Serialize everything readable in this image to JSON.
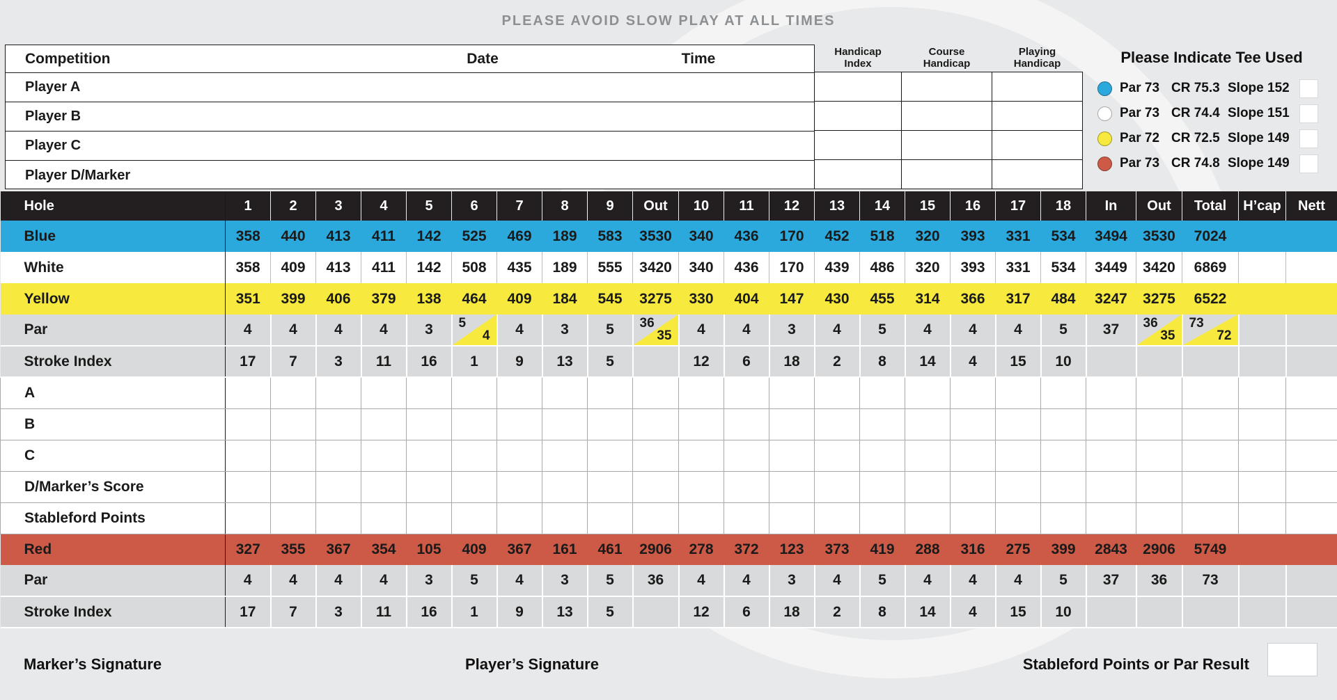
{
  "notice": "PLEASE AVOID SLOW PLAY AT ALL TIMES",
  "info": {
    "competition": "Competition",
    "date": "Date",
    "time": "Time",
    "players": [
      "Player A",
      "Player B",
      "Player C",
      "Player D/Marker"
    ],
    "handicap_columns": [
      [
        "Handicap",
        "Index"
      ],
      [
        "Course",
        "Handicap"
      ],
      [
        "Playing",
        "Handicap"
      ]
    ]
  },
  "tees": {
    "title": "Please Indicate Tee Used",
    "options": [
      {
        "name": "blue",
        "color": "#2BA8DC",
        "par": "Par 73",
        "cr": "CR 75.3",
        "slope": "Slope 152"
      },
      {
        "name": "white",
        "color": "#FFFFFF",
        "par": "Par 73",
        "cr": "CR 74.4",
        "slope": "Slope 151"
      },
      {
        "name": "yellow",
        "color": "#F7E93D",
        "par": "Par 72",
        "cr": "CR 72.5",
        "slope": "Slope 149"
      },
      {
        "name": "red",
        "color": "#CC5A47",
        "par": "Par 73",
        "cr": "CR 74.8",
        "slope": "Slope 149"
      }
    ]
  },
  "scorecard": {
    "columns": [
      "Hole",
      "1",
      "2",
      "3",
      "4",
      "5",
      "6",
      "7",
      "8",
      "9",
      "Out",
      "10",
      "11",
      "12",
      "13",
      "14",
      "15",
      "16",
      "17",
      "18",
      "In",
      "Out",
      "Total",
      "H’cap",
      "Nett"
    ],
    "rows": [
      {
        "label": "Blue",
        "style": "blue",
        "cells": [
          "358",
          "440",
          "413",
          "411",
          "142",
          "525",
          "469",
          "189",
          "583",
          "3530",
          "340",
          "436",
          "170",
          "452",
          "518",
          "320",
          "393",
          "331",
          "534",
          "3494",
          "3530",
          "7024",
          "",
          ""
        ]
      },
      {
        "label": "White",
        "style": "white",
        "cells": [
          "358",
          "409",
          "413",
          "411",
          "142",
          "508",
          "435",
          "189",
          "555",
          "3420",
          "340",
          "436",
          "170",
          "439",
          "486",
          "320",
          "393",
          "331",
          "534",
          "3449",
          "3420",
          "6869",
          "",
          ""
        ]
      },
      {
        "label": "Yellow",
        "style": "yellow",
        "cells": [
          "351",
          "399",
          "406",
          "379",
          "138",
          "464",
          "409",
          "184",
          "545",
          "3275",
          "330",
          "404",
          "147",
          "430",
          "455",
          "314",
          "366",
          "317",
          "484",
          "3247",
          "3275",
          "6522",
          "",
          ""
        ]
      },
      {
        "label": "Par",
        "style": "par",
        "cells": [
          "4",
          "4",
          "4",
          "4",
          "3",
          {
            "split": [
              "5",
              "4"
            ]
          },
          "4",
          "3",
          "5",
          {
            "split": [
              "36",
              "35"
            ]
          },
          "4",
          "4",
          "3",
          "4",
          "5",
          "4",
          "4",
          "4",
          "5",
          "37",
          {
            "split": [
              "36",
              "35"
            ]
          },
          {
            "split": [
              "73",
              "72"
            ]
          },
          "",
          ""
        ]
      },
      {
        "label": "Stroke Index",
        "style": "si",
        "cells": [
          "17",
          "7",
          "3",
          "11",
          "16",
          "1",
          "9",
          "13",
          "5",
          "",
          "12",
          "6",
          "18",
          "2",
          "8",
          "14",
          "4",
          "15",
          "10",
          "",
          "",
          "",
          "",
          ""
        ]
      },
      {
        "label": "A",
        "style": "entry",
        "cells": []
      },
      {
        "label": "B",
        "style": "entry",
        "cells": []
      },
      {
        "label": "C",
        "style": "entry",
        "cells": []
      },
      {
        "label": "D/Marker’s Score",
        "style": "entry",
        "cells": []
      },
      {
        "label": "Stableford Points",
        "style": "entry",
        "cells": []
      },
      {
        "label": "Red",
        "style": "red",
        "cells": [
          "327",
          "355",
          "367",
          "354",
          "105",
          "409",
          "367",
          "161",
          "461",
          "2906",
          "278",
          "372",
          "123",
          "373",
          "419",
          "288",
          "316",
          "275",
          "399",
          "2843",
          "2906",
          "5749",
          "",
          ""
        ]
      },
      {
        "label": "Par",
        "style": "par",
        "cells": [
          "4",
          "4",
          "4",
          "4",
          "3",
          "5",
          "4",
          "3",
          "5",
          "36",
          "4",
          "4",
          "3",
          "4",
          "5",
          "4",
          "4",
          "4",
          "5",
          "37",
          "36",
          "73",
          "",
          ""
        ]
      },
      {
        "label": "Stroke Index",
        "style": "si",
        "cells": [
          "17",
          "7",
          "3",
          "11",
          "16",
          "1",
          "9",
          "13",
          "5",
          "",
          "12",
          "6",
          "18",
          "2",
          "8",
          "14",
          "4",
          "15",
          "10",
          "",
          "",
          "",
          "",
          ""
        ]
      }
    ]
  },
  "footer": {
    "marker_signature": "Marker’s Signature",
    "player_signature": "Player’s Signature",
    "stableford_label": "Stableford Points or Par Result"
  },
  "colors": {
    "page_bg": "#E8E9EA",
    "header_row": "#231F20",
    "blue_row": "#2BA8DC",
    "yellow_row": "#F7E93D",
    "red_row": "#CC5A47",
    "gray_row": "#D9DADB",
    "text": "#1A1A1A"
  }
}
